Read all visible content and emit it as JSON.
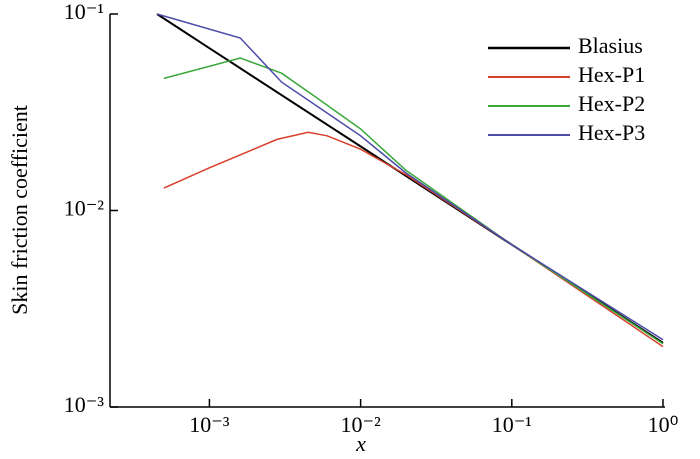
{
  "chart_data": {
    "type": "line",
    "xlabel": "x",
    "ylabel": "Skin friction coefficient",
    "xlog": true,
    "ylog": true,
    "xlim": [
      0.00022,
      1
    ],
    "ylim": [
      0.001,
      0.1
    ],
    "xticks": [
      {
        "value": 0.001,
        "label": "10⁻³"
      },
      {
        "value": 0.01,
        "label": "10⁻²"
      },
      {
        "value": 0.1,
        "label": "10⁻¹"
      },
      {
        "value": 1,
        "label": "10⁰"
      }
    ],
    "yticks": [
      {
        "value": 0.001,
        "label": "10⁻³"
      },
      {
        "value": 0.01,
        "label": "10⁻²"
      },
      {
        "value": 0.1,
        "label": "10⁻¹"
      }
    ],
    "legend": "upper right",
    "series": [
      {
        "name": "Blasius",
        "color": "#000000",
        "width": 2,
        "x": [
          0.00045,
          0.001,
          0.01,
          0.1,
          1
        ],
        "values": [
          0.1,
          0.067,
          0.0212,
          0.0067,
          0.00212
        ]
      },
      {
        "name": "Hex-P1",
        "color": "#d9402b",
        "width": 1.5,
        "x": [
          0.0005,
          0.001,
          0.0028,
          0.0045,
          0.006,
          0.01,
          0.02,
          0.1,
          1
        ],
        "values": [
          0.013,
          0.0165,
          0.023,
          0.025,
          0.024,
          0.0205,
          0.0152,
          0.0067,
          0.00203
        ]
      },
      {
        "name": "Hex-P2",
        "color": "#3aa83a",
        "width": 1.5,
        "x": [
          0.0005,
          0.0016,
          0.003,
          0.005,
          0.01,
          0.02,
          0.1,
          1
        ],
        "values": [
          0.047,
          0.0597,
          0.05,
          0.038,
          0.026,
          0.016,
          0.0067,
          0.0021
        ]
      },
      {
        "name": "Hex-P3",
        "color": "#4b4ba8",
        "width": 1.5,
        "x": [
          0.00045,
          0.0016,
          0.003,
          0.01,
          0.02,
          0.1,
          1
        ],
        "values": [
          0.1,
          0.0755,
          0.045,
          0.024,
          0.0155,
          0.0067,
          0.0022
        ]
      }
    ]
  }
}
